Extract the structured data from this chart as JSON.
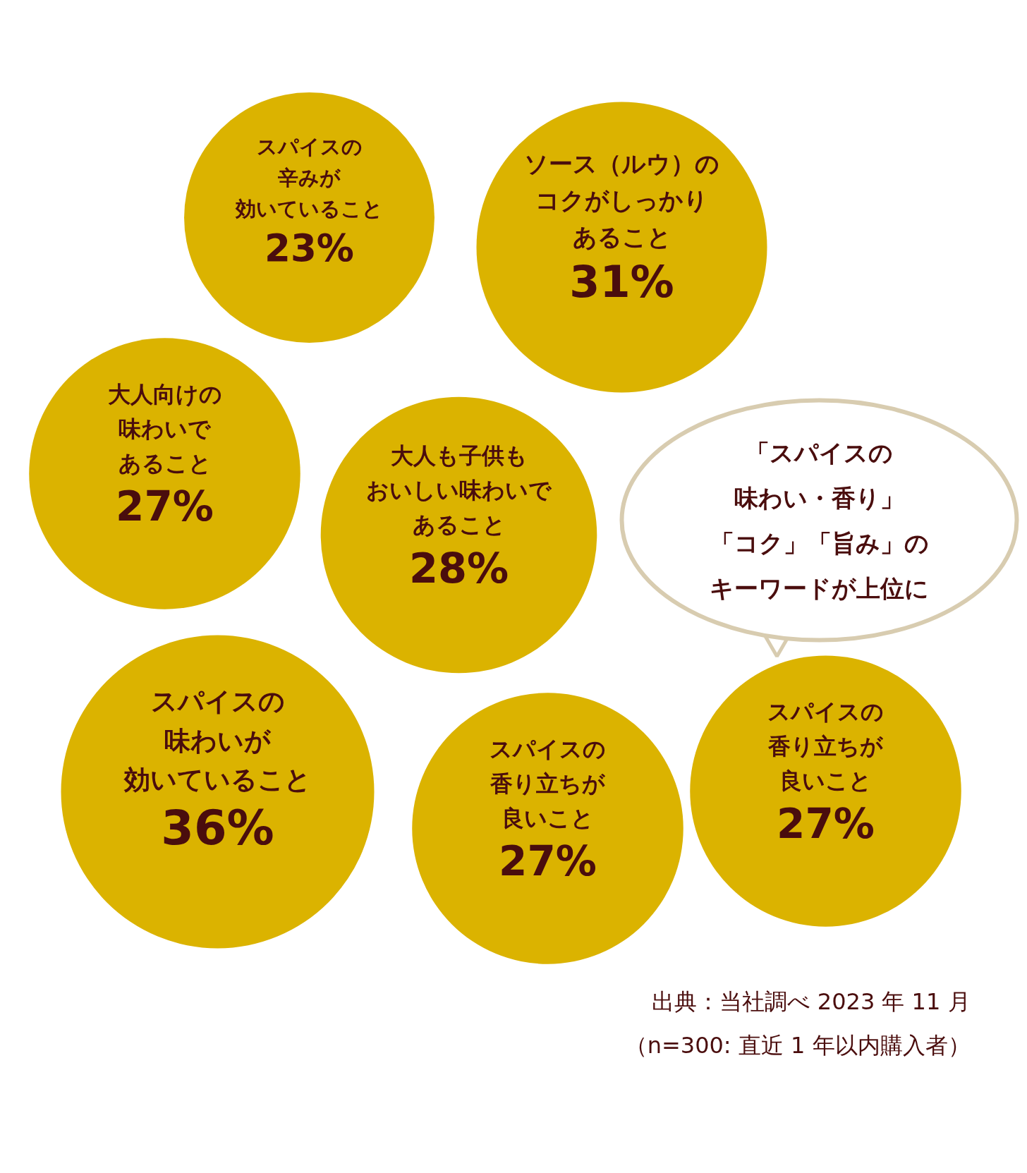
{
  "chart_data": {
    "type": "other",
    "categories": [
      "スパイスの辛みが効いていること",
      "ソース（ルウ）のコクがしっかりあること",
      "大人向けの味わいであること",
      "大人も子供もおいしい味わいであること",
      "スパイスの味わいが効いていること",
      "スパイスの香り立ちが良いこと",
      "スパイスの香り立ちが良いこと"
    ],
    "values": [
      23,
      31,
      27,
      28,
      36,
      27,
      27
    ],
    "value_labels": [
      "23%",
      "31%",
      "27%",
      "28%",
      "36%",
      "27%",
      "27%"
    ],
    "color": "#dbb300",
    "annotations": [
      "「スパイスの味わい・香り」「コク」「旨み」のキーワードが上位に",
      "出典：当社調べ 2023 年 11 月",
      "（n=300: 直近 1 年以内購入者）"
    ]
  }
}
